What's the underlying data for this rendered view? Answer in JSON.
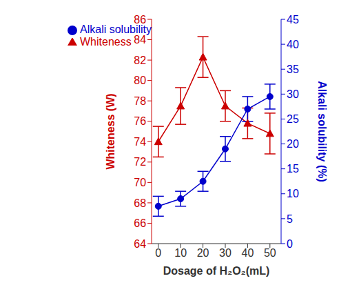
{
  "chart_data": {
    "type": "line",
    "x_label": "Dosage of H₂O₂(mL)",
    "y_label": "Whiteness (W)",
    "y2_label": "Alkali solubility (%)",
    "x": [
      0,
      10,
      20,
      30,
      40,
      50
    ],
    "xlim": [
      -3,
      55
    ],
    "xticks": [
      0,
      10,
      20,
      30,
      40,
      50
    ],
    "ylim": [
      64,
      86
    ],
    "yticks": [
      64,
      66,
      68,
      70,
      72,
      74,
      76,
      78,
      80,
      82,
      84,
      86
    ],
    "y2lim": [
      0,
      45
    ],
    "y2ticks": [
      0,
      5,
      10,
      15,
      20,
      25,
      30,
      35,
      40,
      45
    ],
    "grid": false,
    "legend": "upper left",
    "series": [
      {
        "name": "Whiteness",
        "color": "#cc0000",
        "marker": "triangle",
        "line_style": "solid",
        "values": [
          74.0,
          77.5,
          82.3,
          77.5,
          75.8,
          74.8
        ],
        "error": [
          1.5,
          1.8,
          2.0,
          1.5,
          1.5,
          2.0
        ]
      },
      {
        "name": "Alkali solubility",
        "color": "#0000cc",
        "marker": "circle",
        "line_style": "solid",
        "axis": "y2",
        "values": [
          7.5,
          9.0,
          12.5,
          19.0,
          27.0,
          29.5
        ],
        "error": [
          2.0,
          1.5,
          2.0,
          2.5,
          2.5,
          2.5
        ]
      }
    ]
  }
}
